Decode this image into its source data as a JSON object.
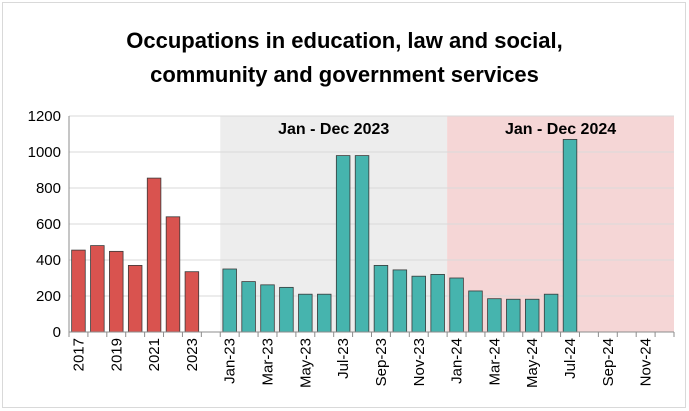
{
  "chart_data": {
    "type": "bar",
    "title_line1": "Occupations in education, law and social,",
    "title_line2": "community and government services",
    "ylim": [
      0,
      1200
    ],
    "yticks": [
      0,
      200,
      400,
      600,
      800,
      1000,
      1200
    ],
    "grid": true,
    "categories": [
      "2017",
      "2018",
      "2019",
      "2020",
      "2021",
      "2022",
      "2023",
      "",
      "Jan-23",
      "Feb-23",
      "Mar-23",
      "Apr-23",
      "May-23",
      "Jun-23",
      "Jul-23",
      "Aug-23",
      "Sep-23",
      "Oct-23",
      "Nov-23",
      "Dec-23",
      "Jan-24",
      "Feb-24",
      "Mar-24",
      "Apr-24",
      "May-24",
      "Jun-24",
      "Jul-24",
      "Aug-24",
      "Sep-24",
      "Oct-24",
      "Nov-24",
      "Dec-24"
    ],
    "tick_labels": [
      "2017",
      "",
      "2019",
      "",
      "2021",
      "",
      "2023",
      "",
      "Jan-23",
      "",
      "Mar-23",
      "",
      "May-23",
      "",
      "Jul-23",
      "",
      "Sep-23",
      "",
      "Nov-23",
      "",
      "Jan-24",
      "",
      "Mar-24",
      "",
      "May-24",
      "",
      "Jul-24",
      "",
      "Sep-24",
      "",
      "Nov-24",
      ""
    ],
    "values": [
      455,
      480,
      448,
      370,
      855,
      640,
      335,
      null,
      350,
      280,
      262,
      248,
      210,
      210,
      980,
      980,
      370,
      345,
      310,
      320,
      300,
      228,
      185,
      182,
      182,
      210,
      1070,
      null,
      null,
      null,
      null,
      null
    ],
    "bar_colors": {
      "annual": "#d9534f",
      "monthly": "#46b4ae"
    },
    "shaded_regions": [
      {
        "label": "Jan - Dec 2023",
        "from": 8,
        "to": 19,
        "color": "#ededed"
      },
      {
        "label": "Jan - Dec 2024",
        "from": 20,
        "to": 31,
        "color": "#f5d6d6"
      }
    ]
  }
}
